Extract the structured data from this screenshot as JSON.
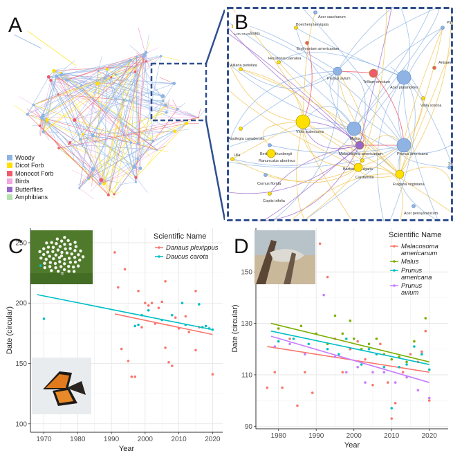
{
  "panels": {
    "a": "A",
    "b": "B",
    "c": "C",
    "d": "D"
  },
  "colors": {
    "woody": "#8fb4e3",
    "dicot": "#ffe000",
    "monocot": "#ef5a6a",
    "birds": "#f2a7e0",
    "butterflies": "#9966cc",
    "amphibians": "#b6e0b0",
    "frame": "#2f4f8f"
  },
  "network_legend": [
    {
      "label": "Woody",
      "color": "#8fb4e3"
    },
    {
      "label": "Dicot Forb",
      "color": "#ffe000"
    },
    {
      "label": "Monocot Forb",
      "color": "#ef5a6a"
    },
    {
      "label": "Birds",
      "color": "#f2a7e0"
    },
    {
      "label": "Butterflies",
      "color": "#9966cc"
    },
    {
      "label": "Amphibians",
      "color": "#b6e0b0"
    }
  ],
  "zoom_nodes": [
    {
      "label": "Acer saccharum",
      "group": "woody",
      "size": "s"
    },
    {
      "label": "Caltha palustris",
      "group": "dicot",
      "size": "s"
    },
    {
      "label": "Boechera laevigata",
      "group": "dicot",
      "size": "s"
    },
    {
      "label": "Erythronium americanum",
      "group": "monocot",
      "size": "s"
    },
    {
      "label": "Houstonia caerulea",
      "group": "dicot",
      "size": "s"
    },
    {
      "label": "Alliaria petiolata",
      "group": "dicot",
      "size": "s"
    },
    {
      "label": "Prunus avium",
      "group": "woody",
      "size": "m"
    },
    {
      "label": "Trillium erectum",
      "group": "monocot",
      "size": "m"
    },
    {
      "label": "Acer platanoides",
      "group": "woody",
      "size": "l"
    },
    {
      "label": "Anisaema triphyllum",
      "group": "monocot",
      "size": "s"
    },
    {
      "label": "Viola sorona",
      "group": "dicot",
      "size": "s"
    },
    {
      "label": "Pipil",
      "group": "woody",
      "size": "s"
    },
    {
      "label": "Aquilegia canadensis",
      "group": "dicot",
      "size": "s"
    },
    {
      "label": "Viola pubescens",
      "group": "dicot",
      "size": "l"
    },
    {
      "label": "Malus",
      "group": "woody",
      "size": "l"
    },
    {
      "label": "Berberis thunbergii",
      "group": "woody",
      "size": "s"
    },
    {
      "label": "Malacosoma americanum",
      "group": "butterflies",
      "size": "m"
    },
    {
      "label": "Prunus americana",
      "group": "woody",
      "size": "l"
    },
    {
      "label": "Ranunculus abortivus",
      "group": "dicot",
      "size": "m"
    },
    {
      "label": "Barbarea vulgaris",
      "group": "dicot",
      "size": "s"
    },
    {
      "label": "Cardamine",
      "group": "dicot",
      "size": "m"
    },
    {
      "label": "Cornus florida",
      "group": "woody",
      "size": "s"
    },
    {
      "label": "Fragaria virginiana",
      "group": "dicot",
      "size": "m"
    },
    {
      "label": "Coptis trifolia",
      "group": "dicot",
      "size": "s"
    },
    {
      "label": "Acer pensylvanicum",
      "group": "woody",
      "size": "s"
    },
    {
      "label": "Ulla",
      "group": "dicot",
      "size": "s"
    },
    {
      "label": "Sa",
      "group": "woody",
      "size": "s"
    }
  ],
  "chart_data": [
    {
      "type": "scatter",
      "panel": "C",
      "xlabel": "Year",
      "ylabel": "Date (circular)",
      "xlim": [
        1966,
        2023
      ],
      "ylim": [
        93,
        262
      ],
      "xticks": [
        1970,
        1980,
        1990,
        2000,
        2010,
        2020
      ],
      "yticks": [
        100,
        150,
        200,
        250
      ],
      "grid": true,
      "legend_title": "Scientific Name",
      "legend_position": "top-right",
      "series": [
        {
          "name": "Danaus plexippus",
          "color": "#f8766d",
          "points": [
            [
              1991,
              242
            ],
            [
              1992,
              213
            ],
            [
              1993,
              162
            ],
            [
              1994,
              228
            ],
            [
              1995,
              152
            ],
            [
              1996,
              139
            ],
            [
              1997,
              139
            ],
            [
              1998,
              210
            ],
            [
              1999,
              180
            ],
            [
              2000,
              200
            ],
            [
              2001,
              198
            ],
            [
              2002,
              200
            ],
            [
              2003,
              183
            ],
            [
              2004,
              196
            ],
            [
              2005,
              201
            ],
            [
              2006,
              218
            ],
            [
              2006,
              163
            ],
            [
              2007,
              151
            ],
            [
              2008,
              148
            ],
            [
              2009,
              188
            ],
            [
              2010,
              179
            ],
            [
              2012,
              189
            ],
            [
              2013,
              176
            ],
            [
              2015,
              210
            ],
            [
              2015,
              161
            ],
            [
              2016,
              180
            ],
            [
              2020,
              141
            ]
          ],
          "trend": [
            [
              1991,
              191
            ],
            [
              2020,
              174
            ]
          ]
        },
        {
          "name": "Daucus carota",
          "color": "#00bfc4",
          "points": [
            [
              1969,
              231
            ],
            [
              1970,
              187
            ],
            [
              1997,
              181
            ],
            [
              1998,
              182
            ],
            [
              1999,
              190
            ],
            [
              2001,
              194
            ],
            [
              2005,
              186
            ],
            [
              2008,
              190
            ],
            [
              2011,
              200
            ],
            [
              2012,
              182
            ],
            [
              2016,
              199
            ],
            [
              2017,
              180
            ],
            [
              2018,
              181
            ],
            [
              2019,
              179
            ],
            [
              2020,
              178
            ]
          ],
          "trend": [
            [
              1968,
              207
            ],
            [
              2020,
              178
            ]
          ]
        }
      ]
    },
    {
      "type": "scatter",
      "panel": "D",
      "xlabel": "Year",
      "ylabel": "Date (circular)",
      "xlim": [
        1974,
        2025
      ],
      "ylim": [
        89,
        167
      ],
      "xticks": [
        1980,
        1990,
        2000,
        2010,
        2020
      ],
      "yticks": [
        90,
        110,
        130,
        150
      ],
      "grid": true,
      "legend_title": "Scientific Name",
      "legend_position": "top-right",
      "series": [
        {
          "name": "Malacosoma americanum",
          "color": "#f8766d",
          "points": [
            [
              1977,
              105
            ],
            [
              1979,
              111
            ],
            [
              1981,
              105
            ],
            [
              1983,
              124
            ],
            [
              1985,
              98
            ],
            [
              1987,
              111
            ],
            [
              1989,
              103
            ],
            [
              1991,
              161
            ],
            [
              1993,
              148
            ],
            [
              1995,
              124
            ],
            [
              1997,
              111
            ],
            [
              1999,
              120
            ],
            [
              2001,
              123
            ],
            [
              2003,
              116
            ],
            [
              2005,
              106
            ],
            [
              2007,
              122
            ],
            [
              2009,
              107
            ],
            [
              2010,
              93
            ],
            [
              2011,
              99
            ],
            [
              2013,
              111
            ],
            [
              2015,
              118
            ],
            [
              2017,
              115
            ],
            [
              2018,
              119
            ],
            [
              2019,
              127
            ],
            [
              2020,
              100
            ]
          ],
          "trend": [
            [
              1977,
              121
            ],
            [
              2020,
              111
            ]
          ]
        },
        {
          "name": "Malus",
          "color": "#7cae00",
          "points": [
            [
              1980,
              128
            ],
            [
              1986,
              129
            ],
            [
              1990,
              126
            ],
            [
              1993,
              122
            ],
            [
              1995,
              133
            ],
            [
              1997,
              126
            ],
            [
              1999,
              131
            ],
            [
              2000,
              124
            ],
            [
              2002,
              120
            ],
            [
              2004,
              122
            ],
            [
              2006,
              124
            ],
            [
              2008,
              118
            ],
            [
              2010,
              116
            ],
            [
              2012,
              117
            ],
            [
              2014,
              115
            ],
            [
              2016,
              123
            ],
            [
              2018,
              118
            ],
            [
              2019,
              132
            ]
          ],
          "trend": [
            [
              1978,
              130
            ],
            [
              2020,
              115
            ]
          ]
        },
        {
          "name": "Prunus americana",
          "color": "#00bfc4",
          "points": [
            [
              1980,
              123
            ],
            [
              1984,
              124
            ],
            [
              1988,
              122
            ],
            [
              1993,
              120
            ],
            [
              1996,
              118
            ],
            [
              1998,
              124
            ],
            [
              2002,
              114
            ],
            [
              2004,
              120
            ],
            [
              2006,
              118
            ],
            [
              2008,
              113
            ],
            [
              2010,
              97
            ],
            [
              2012,
              113
            ],
            [
              2014,
              114
            ],
            [
              2016,
              121
            ],
            [
              2018,
              118
            ],
            [
              2020,
              112
            ]
          ],
          "trend": [
            [
              1978,
              127
            ],
            [
              2020,
              114
            ]
          ]
        },
        {
          "name": "Prunus avium",
          "color": "#c77cff",
          "points": [
            [
              1979,
              121
            ],
            [
              1983,
              122
            ],
            [
              1987,
              118
            ],
            [
              1992,
              141
            ],
            [
              1995,
              117
            ],
            [
              1998,
              111
            ],
            [
              2001,
              113
            ],
            [
              2003,
              107
            ],
            [
              2005,
              111
            ],
            [
              2008,
              111
            ],
            [
              2011,
              107
            ],
            [
              2014,
              109
            ],
            [
              2017,
              104
            ],
            [
              2020,
              101
            ]
          ],
          "trend": [
            [
              1978,
              125
            ],
            [
              2020,
              107
            ]
          ]
        }
      ]
    }
  ]
}
